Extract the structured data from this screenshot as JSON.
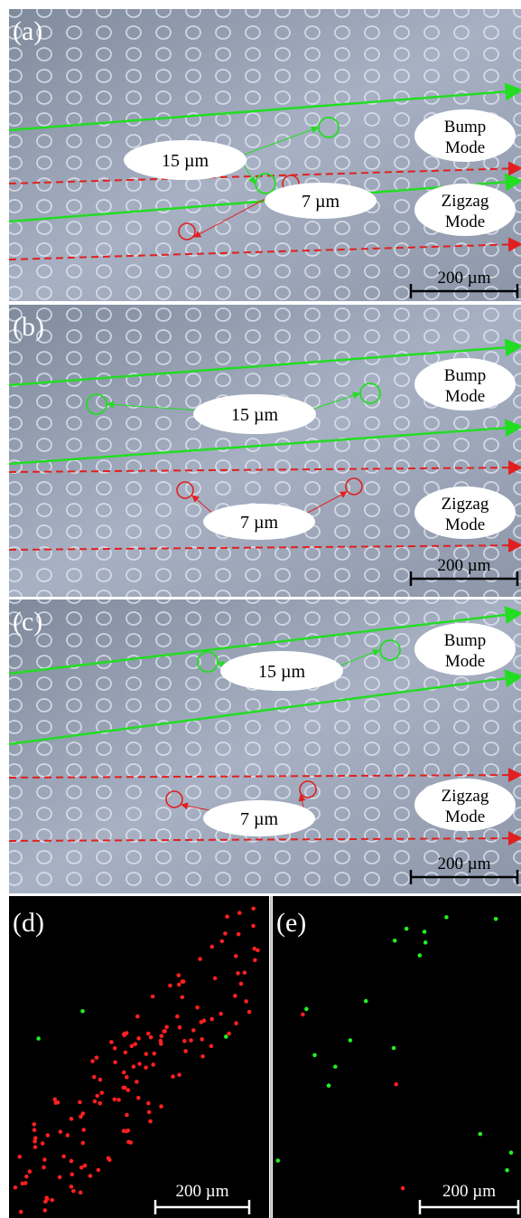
{
  "panels": [
    {
      "label": "(a)",
      "large_label": "15 µm",
      "small_label": "7 µm",
      "bump_mode": [
        "Bump",
        "Mode"
      ],
      "zigzag_mode": [
        "Zigzag",
        "Mode"
      ],
      "scale_bar": "200 µm"
    },
    {
      "label": "(b)",
      "large_label": "15 µm",
      "small_label": "7 µm",
      "bump_mode": [
        "Bump",
        "Mode"
      ],
      "zigzag_mode": [
        "Zigzag",
        "Mode"
      ],
      "scale_bar": "200 µm"
    },
    {
      "label": "(c)",
      "large_label": "15 µm",
      "small_label": "7 µm",
      "bump_mode": [
        "Bump",
        "Mode"
      ],
      "zigzag_mode": [
        "Zigzag",
        "Mode"
      ],
      "scale_bar": "200 µm"
    },
    {
      "label": "(d)",
      "scale_bar": "200 µm"
    },
    {
      "label": "(e)",
      "scale_bar": "200 µm"
    }
  ]
}
